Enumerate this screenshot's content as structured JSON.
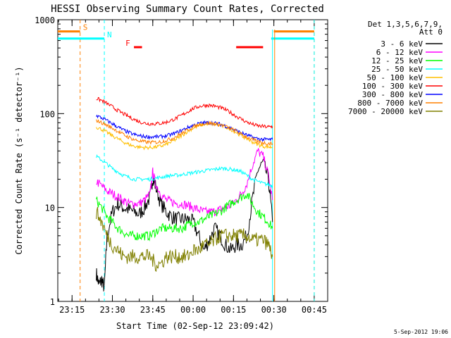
{
  "chart_data": {
    "type": "line",
    "title": "HESSI Observing Summary Count Rates, Corrected",
    "xlabel": "Start Time (02-Sep-12 23:09:42)",
    "ylabel": "Corrected Count Rate (s⁻¹ detector⁻¹)",
    "x_unit": "minutes after 02-Sep-12 23:00",
    "xlim": [
      9.7,
      110
    ],
    "ylim": [
      1,
      1000
    ],
    "yscale": "log",
    "x_ticks": [
      {
        "value": 15,
        "label": "23:15"
      },
      {
        "value": 30,
        "label": "23:30"
      },
      {
        "value": 45,
        "label": "23:45"
      },
      {
        "value": 60,
        "label": "00:00"
      },
      {
        "value": 75,
        "label": "00:15"
      },
      {
        "value": 90,
        "label": "00:30"
      },
      {
        "value": 105,
        "label": "00:45"
      }
    ],
    "y_ticks": [
      {
        "value": 1,
        "label": "1"
      },
      {
        "value": 10,
        "label": "10"
      },
      {
        "value": 100,
        "label": "100"
      },
      {
        "value": 1000,
        "label": "1000"
      }
    ],
    "legend_title": [
      "Det 1,3,5,6,7,9,",
      "Att 0"
    ],
    "legend_position": "right",
    "series": [
      {
        "name": "3 - 6 keV",
        "color": "#000000",
        "x": [
          24,
          25,
          26,
          27,
          28,
          30,
          32,
          34,
          36,
          38,
          40,
          42,
          44,
          45,
          46,
          48,
          50,
          52,
          54,
          56,
          58,
          60,
          62,
          64,
          66,
          68,
          70,
          72,
          74,
          76,
          78,
          80,
          82,
          84,
          86,
          88,
          89.5
        ],
        "y": [
          2.0,
          1.5,
          1.7,
          1.4,
          5.0,
          9,
          11,
          10,
          9.5,
          9,
          8.5,
          10,
          13,
          21,
          17,
          11,
          9,
          8,
          7.5,
          7.5,
          7.5,
          7,
          5,
          3.5,
          4.5,
          6,
          5,
          4,
          3.5,
          4,
          4,
          5,
          12,
          25,
          30,
          20,
          7
        ]
      },
      {
        "name": "6 - 12 keV",
        "color": "#ff00ff",
        "x": [
          24,
          26,
          28,
          30,
          32,
          34,
          36,
          38,
          40,
          42,
          44,
          45,
          46,
          48,
          50,
          52,
          54,
          56,
          58,
          60,
          62,
          64,
          66,
          68,
          70,
          72,
          74,
          76,
          78,
          80,
          82,
          84,
          86,
          88,
          89.5
        ],
        "y": [
          19,
          17,
          15,
          14,
          13,
          12,
          11,
          11,
          11,
          12,
          14,
          24,
          18,
          14,
          12,
          11.5,
          11,
          11,
          10.5,
          10,
          9.5,
          9,
          9,
          9,
          9.5,
          10,
          10.5,
          12,
          14,
          18,
          28,
          40,
          35,
          22,
          12
        ]
      },
      {
        "name": "12 - 25 keV",
        "color": "#00ff00",
        "x": [
          24,
          26,
          28,
          30,
          32,
          34,
          36,
          38,
          40,
          42,
          44,
          46,
          48,
          50,
          52,
          54,
          56,
          58,
          60,
          62,
          64,
          66,
          68,
          70,
          72,
          74,
          76,
          78,
          80,
          82,
          84,
          86,
          88,
          89.5
        ],
        "y": [
          12,
          10,
          8,
          7,
          6,
          5.5,
          5,
          5,
          5,
          5,
          5,
          5.5,
          6,
          6,
          6,
          6,
          6,
          6.5,
          7,
          7,
          7.5,
          8,
          8.5,
          9,
          10,
          11,
          12,
          13,
          14,
          11,
          9,
          8,
          7,
          6
        ]
      },
      {
        "name": "25 - 50 keV",
        "color": "#00ffff",
        "x": [
          24,
          26,
          28,
          30,
          32,
          34,
          36,
          38,
          40,
          42,
          44,
          46,
          48,
          50,
          52,
          54,
          56,
          58,
          60,
          62,
          64,
          66,
          68,
          70,
          72,
          74,
          76,
          78,
          80,
          82,
          84,
          86,
          88,
          89.5
        ],
        "y": [
          35,
          32,
          29,
          26,
          24,
          22,
          21,
          20,
          20,
          20,
          20,
          20.5,
          21,
          21.5,
          22,
          22,
          22.5,
          23,
          23.5,
          24,
          24.5,
          25,
          25.5,
          26,
          26,
          25.5,
          25,
          24,
          22,
          20,
          19,
          18,
          17.5,
          17
        ]
      },
      {
        "name": "50 - 100 keV",
        "color": "#ffbf00",
        "x": [
          24,
          26,
          28,
          30,
          32,
          34,
          36,
          38,
          40,
          42,
          44,
          46,
          48,
          50,
          52,
          54,
          56,
          58,
          60,
          62,
          64,
          66,
          68,
          70,
          72,
          74,
          76,
          78,
          80,
          82,
          84,
          86,
          88,
          89.5
        ],
        "y": [
          72,
          68,
          63,
          58,
          54,
          50,
          47,
          45,
          44,
          43.5,
          43.5,
          44,
          45,
          47,
          50,
          54,
          59,
          65,
          70,
          74,
          77,
          78,
          77,
          75,
          72,
          68,
          63,
          58,
          54,
          50,
          47,
          45,
          44,
          44
        ]
      },
      {
        "name": "100 - 300 keV",
        "color": "#ff0000",
        "x": [
          24,
          26,
          28,
          30,
          32,
          34,
          36,
          38,
          40,
          42,
          44,
          46,
          48,
          50,
          52,
          54,
          56,
          58,
          60,
          62,
          64,
          66,
          68,
          70,
          72,
          74,
          76,
          78,
          80,
          82,
          84,
          86,
          88,
          89.5
        ],
        "y": [
          145,
          138,
          128,
          118,
          108,
          100,
          93,
          87,
          82,
          79,
          78,
          78,
          79,
          81,
          85,
          90,
          97,
          105,
          113,
          119,
          122,
          123,
          120,
          116,
          110,
          102,
          94,
          87,
          81,
          77,
          74,
          73,
          72,
          73
        ]
      },
      {
        "name": "300 - 800 keV",
        "color": "#0000ff",
        "x": [
          24,
          26,
          28,
          30,
          32,
          34,
          36,
          38,
          40,
          42,
          44,
          46,
          48,
          50,
          52,
          54,
          56,
          58,
          60,
          62,
          64,
          66,
          68,
          70,
          72,
          74,
          76,
          78,
          80,
          82,
          84,
          86,
          88,
          89.5
        ],
        "y": [
          95,
          90,
          84,
          78,
          72,
          67,
          63,
          60,
          58,
          57,
          56.5,
          56.5,
          57,
          58,
          60,
          63,
          67,
          71,
          75,
          78,
          80,
          80,
          79,
          77,
          74,
          70,
          66,
          62,
          59,
          56,
          54,
          53,
          53,
          53
        ]
      },
      {
        "name": "800 - 7000 keV",
        "color": "#ff8000",
        "x": [
          24,
          26,
          28,
          30,
          32,
          34,
          36,
          38,
          40,
          42,
          44,
          46,
          48,
          50,
          52,
          54,
          56,
          58,
          60,
          62,
          64,
          66,
          68,
          70,
          72,
          74,
          76,
          78,
          80,
          82,
          84,
          86,
          88,
          89.5
        ],
        "y": [
          85,
          80,
          75,
          70,
          65,
          60,
          56,
          53,
          51,
          50,
          49.5,
          49.5,
          50,
          52,
          54,
          58,
          62,
          67,
          72,
          76,
          78,
          79,
          78,
          76,
          73,
          69,
          65,
          60,
          56,
          53,
          50,
          49,
          48,
          48
        ]
      },
      {
        "name": "7000 - 20000 keV",
        "color": "#808000",
        "x": [
          24,
          26,
          28,
          30,
          32,
          34,
          36,
          38,
          40,
          42,
          44,
          46,
          48,
          50,
          52,
          54,
          56,
          58,
          60,
          62,
          64,
          66,
          68,
          70,
          72,
          74,
          76,
          78,
          80,
          82,
          84,
          86,
          88,
          89.5
        ],
        "y": [
          9,
          7,
          5,
          4,
          3.5,
          3,
          3,
          3,
          3,
          3,
          3,
          2.5,
          2.5,
          3,
          3,
          3,
          3,
          3,
          3.5,
          3.5,
          4,
          4,
          4.5,
          5,
          5,
          5,
          5,
          5,
          5,
          4.5,
          4.5,
          4.5,
          4,
          3
        ]
      }
    ],
    "annotations": [
      {
        "label": "S",
        "color": "#ff8000",
        "x_start": 9.7,
        "x_end": 18,
        "y": 750,
        "marker_x": 18
      },
      {
        "label": "N",
        "color": "#00ffff",
        "x_start": 9.7,
        "x_end": 27,
        "y": 630,
        "marker_x": 27
      },
      {
        "label": "F",
        "color": "#ff0000",
        "segments": [
          [
            38,
            41
          ],
          [
            76,
            86
          ]
        ],
        "y": 510
      },
      {
        "label": "",
        "color": "#ff8000",
        "x_start": 90,
        "x_end": 105,
        "y": 750,
        "marker_x": 105
      },
      {
        "label": "",
        "color": "#00ffff",
        "x_start": 89,
        "x_end": 105,
        "y": 630,
        "marker_x": 105
      }
    ]
  },
  "footer": {
    "timestamp": "5-Sep-2012 19:06"
  }
}
